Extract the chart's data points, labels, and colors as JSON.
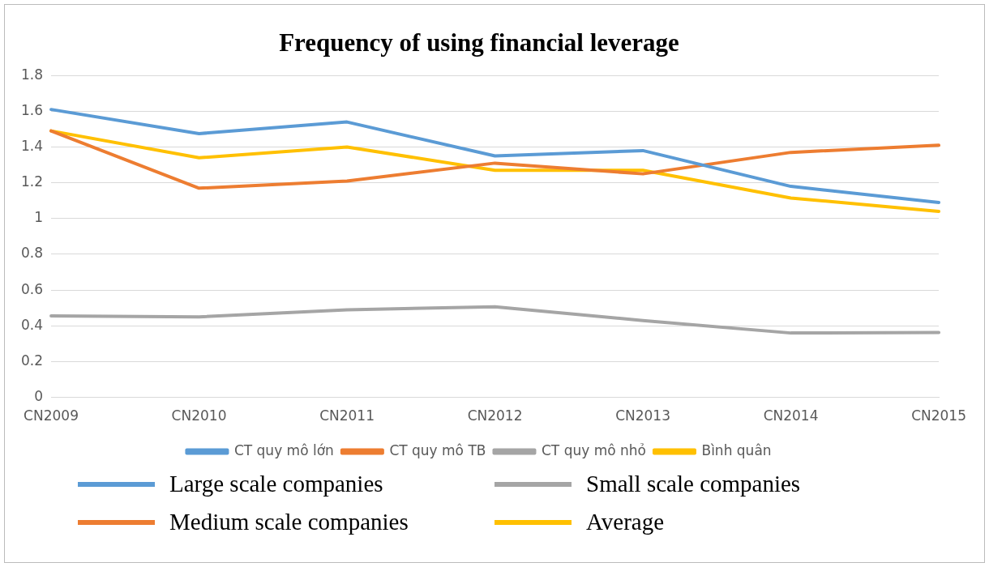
{
  "chart_data": {
    "type": "line",
    "title": "Frequency of using financial leverage",
    "categories": [
      "CN2009",
      "CN2010",
      "CN2011",
      "CN2012",
      "CN2013",
      "CN2014",
      "CN2015"
    ],
    "series": [
      {
        "name": "CT quy mô lớn",
        "color": "#5b9bd5",
        "values": [
          1.61,
          1.475,
          1.54,
          1.35,
          1.38,
          1.18,
          1.09
        ]
      },
      {
        "name": "CT quy mô TB",
        "color": "#ed7d31",
        "values": [
          1.49,
          1.17,
          1.21,
          1.31,
          1.25,
          1.37,
          1.41
        ]
      },
      {
        "name": "CT quy mô nhỏ",
        "color": "#a5a5a5",
        "values": [
          0.456,
          0.45,
          0.49,
          0.507,
          0.43,
          0.36,
          0.363
        ]
      },
      {
        "name": "Bình quân",
        "color": "#ffc000",
        "values": [
          1.49,
          1.34,
          1.4,
          1.27,
          1.27,
          1.115,
          1.04
        ]
      }
    ],
    "ylim": [
      0,
      1.8
    ],
    "yticks": [
      0,
      0.2,
      0.4,
      0.6,
      0.8,
      1,
      1.2,
      1.4,
      1.6,
      1.8
    ],
    "grid": "y",
    "legend": "bottom",
    "marker": "none",
    "line_style": "solid",
    "annotations": [
      "Large scale companies",
      "Small scale companies",
      "Medium scale companies",
      "Average"
    ]
  }
}
